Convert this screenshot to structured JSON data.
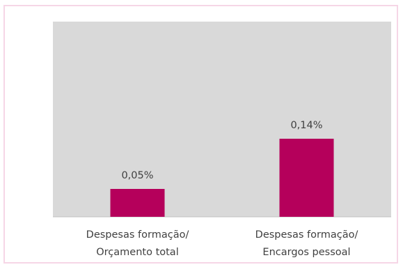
{
  "chart_data": {
    "type": "bar",
    "categories": [
      [
        "Despesas formação/",
        "Orçamento total"
      ],
      [
        "Despesas formação/",
        "Encargos pessoal"
      ]
    ],
    "values": [
      0.05,
      0.14
    ],
    "data_labels": [
      "0,05%",
      "0,14%"
    ],
    "unit": "%",
    "ylim": [
      0,
      0.35
    ],
    "grid": false,
    "legend": "none",
    "colors": {
      "bar": "#b5005b",
      "plot_background": "#d9d9d9",
      "border": "#f6d6e6",
      "text": "#404040"
    }
  }
}
